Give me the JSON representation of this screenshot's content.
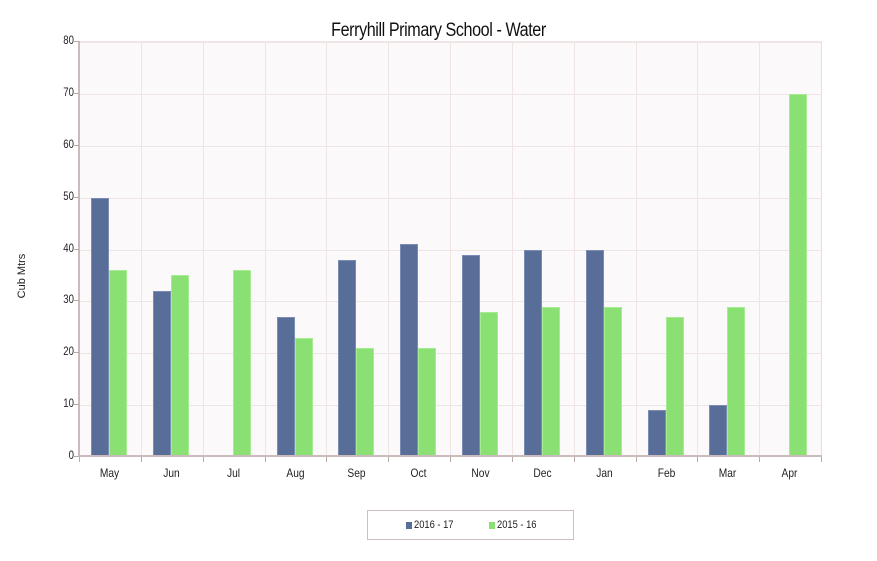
{
  "chart_data": {
    "type": "bar",
    "title": "Ferryhill Primary School  - Water",
    "xlabel": "",
    "ylabel": "Cub Mtrs",
    "ylim": [
      0,
      80
    ],
    "yticks": [
      0,
      10,
      20,
      30,
      40,
      50,
      60,
      70,
      80
    ],
    "grid": true,
    "legend_position": "bottom",
    "categories": [
      "May",
      "Jun",
      "Jul",
      "Aug",
      "Sep",
      "Oct",
      "Nov",
      "Dec",
      "Jan",
      "Feb",
      "Mar",
      "Apr"
    ],
    "series": [
      {
        "name": "2016 - 17",
        "color": "#586d98",
        "values": [
          50,
          32,
          0,
          27,
          38,
          41,
          39,
          40,
          40,
          9,
          10,
          0
        ]
      },
      {
        "name": "2015 - 16",
        "color": "#8ae072",
        "values": [
          36,
          35,
          36,
          23,
          21,
          21,
          28,
          29,
          29,
          27,
          29,
          70
        ]
      }
    ]
  }
}
